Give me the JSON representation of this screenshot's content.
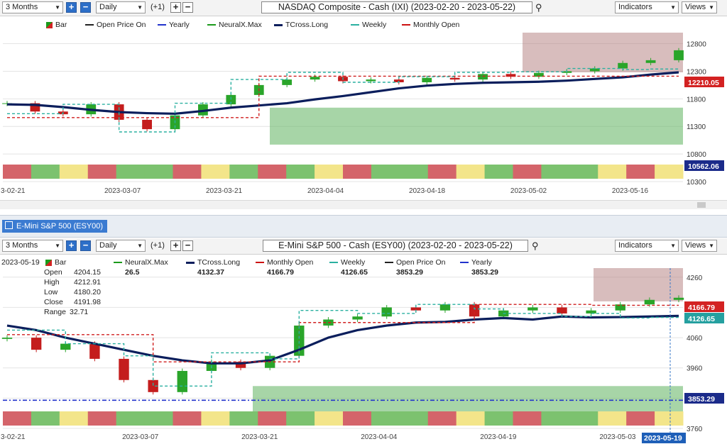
{
  "toolbar1": {
    "period": "3 Months",
    "interval": "Daily",
    "offset": "(+1)",
    "title": "NASDAQ Composite - Cash (IXI) (2023-02-20 - 2023-05-22)",
    "indicators": "Indicators",
    "views": "Views"
  },
  "toolbar2": {
    "period": "3 Months",
    "interval": "Daily",
    "offset": "(+1)",
    "title": "E-Mini S&P 500 - Cash (ESY00) (2023-02-20 - 2023-05-22)",
    "indicators": "Indicators",
    "views": "Views"
  },
  "tab_label": "E-Mini S&P 500 (ESY00)",
  "legend1": [
    {
      "label": "Bar",
      "color": "#1a9a1a"
    },
    {
      "label": "Open Price On",
      "color": "#222222"
    },
    {
      "label": "Yearly",
      "color": "#2233cc"
    },
    {
      "label": "NeuralX.Max",
      "color": "#1a9a1a"
    },
    {
      "label": "TCross.Long",
      "color": "#0b1e5c"
    },
    {
      "label": "Weekly",
      "color": "#2ab0a0"
    },
    {
      "label": "Monthly Open",
      "color": "#cc1111"
    }
  ],
  "legend2": {
    "date": "2023-05-19",
    "items": [
      {
        "label": "Bar",
        "color": "#1a9a1a"
      },
      {
        "label": "NeuralX.Max",
        "color": "#1a9a1a",
        "value": "26.5"
      },
      {
        "label": "TCross.Long",
        "color": "#0b1e5c",
        "value": "4132.37"
      },
      {
        "label": "Monthly Open",
        "color": "#cc1111",
        "value": "4166.79"
      },
      {
        "label": "Weekly",
        "color": "#2ab0a0",
        "value": "4126.65"
      },
      {
        "label": "Open Price On",
        "color": "#222222",
        "value": "3853.29"
      },
      {
        "label": "Yearly",
        "color": "#2233cc",
        "value": "3853.29"
      }
    ],
    "ohlc": [
      {
        "k": "Open",
        "v": "4204.15"
      },
      {
        "k": "High",
        "v": "4212.91"
      },
      {
        "k": "Low",
        "v": "4180.20"
      },
      {
        "k": "Close",
        "v": "4191.98"
      },
      {
        "k": "Range",
        "v": "32.71"
      }
    ]
  },
  "chart_data": [
    {
      "type": "line",
      "title": "NASDAQ Composite - Cash (IXI) (2023-02-20 - 2023-05-22)",
      "ylim": [
        10300,
        13000
      ],
      "y_ticks": [
        12800,
        12300,
        11800,
        11300,
        10800,
        10300
      ],
      "x_ticks": [
        "3-02-21",
        "2023-03-07",
        "2023-03-21",
        "2023-04-04",
        "2023-04-18",
        "2023-05-02",
        "2023-05-16"
      ],
      "price_labels": [
        {
          "value": "12210.05",
          "color": "#d32222"
        },
        {
          "value": "10562.06",
          "color": "#1b2b8a"
        }
      ],
      "series": [
        {
          "name": "TCross.Long",
          "values": [
            11700,
            11690,
            11650,
            11600,
            11560,
            11540,
            11530,
            11580,
            11640,
            11680,
            11720,
            11790,
            11850,
            11920,
            11990,
            12040,
            12070,
            12090,
            12100,
            12110,
            12130,
            12160,
            12190,
            12240,
            12280
          ]
        },
        {
          "name": "Monthly Open",
          "values": [
            11460,
            11460,
            11460,
            11460,
            11460,
            11460,
            11460,
            11460,
            11460,
            12210,
            12210,
            12210,
            12210,
            12210,
            12210,
            12210,
            12210,
            12210,
            12210,
            12210,
            12210,
            12210,
            12210,
            12210,
            12210
          ]
        },
        {
          "name": "Weekly",
          "values": [
            11530,
            11530,
            11700,
            11700,
            11200,
            11200,
            11720,
            11720,
            12150,
            12150,
            12280,
            12280,
            12100,
            12100,
            12200,
            12200,
            12280,
            12280,
            12290,
            12290,
            12350,
            12350,
            12330,
            12340,
            12360
          ]
        },
        {
          "name": "Close",
          "values": [
            11720,
            11570,
            11520,
            11700,
            11420,
            11250,
            11500,
            11700,
            11870,
            12050,
            12150,
            12200,
            12120,
            12150,
            12100,
            12180,
            12150,
            12250,
            12200,
            12270,
            12300,
            12350,
            12450,
            12500,
            12680
          ]
        }
      ]
    },
    {
      "type": "line",
      "title": "E-Mini S&P 500 - Cash (ESY00) (2023-02-20 - 2023-05-22)",
      "ylim": [
        3760,
        4290
      ],
      "y_ticks": [
        4260,
        4160,
        4060,
        3960,
        3860,
        3760
      ],
      "x_ticks": [
        "3-02-21",
        "2023-03-07",
        "2023-03-21",
        "2023-04-04",
        "2023-04-19",
        "2023-05-03"
      ],
      "price_labels": [
        {
          "value": "4166.79",
          "color": "#d32222"
        },
        {
          "value": "4126.65",
          "color": "#25a0a0"
        },
        {
          "value": "3853.29",
          "color": "#1b2b8a"
        }
      ],
      "cursor_date": "2023-05-19",
      "series": [
        {
          "name": "TCross.Long",
          "values": [
            4100,
            4085,
            4060,
            4040,
            4020,
            4000,
            3985,
            3975,
            3975,
            3985,
            4020,
            4060,
            4085,
            4100,
            4110,
            4112,
            4120,
            4125,
            4120,
            4130,
            4127,
            4128,
            4130,
            4132
          ]
        },
        {
          "name": "Monthly Open",
          "values": [
            4070,
            4070,
            4070,
            4070,
            4070,
            3980,
            3980,
            3980,
            3980,
            3980,
            4110,
            4110,
            4110,
            4110,
            4110,
            4110,
            4170,
            4170,
            4170,
            4170,
            4167,
            4167,
            4167,
            4167
          ]
        },
        {
          "name": "Weekly",
          "values": [
            4085,
            4085,
            4040,
            4040,
            4000,
            3900,
            3900,
            4010,
            4010,
            3990,
            4150,
            4150,
            4140,
            4140,
            4170,
            4170,
            4155,
            4140,
            4140,
            4130,
            4140,
            4125,
            4127,
            4127
          ]
        },
        {
          "name": "Close",
          "values": [
            4060,
            4020,
            4040,
            3990,
            3920,
            3880,
            3950,
            3980,
            3960,
            4000,
            4100,
            4120,
            4130,
            4160,
            4150,
            4170,
            4130,
            4150,
            4160,
            4140,
            4150,
            4170,
            4185,
            4192
          ]
        }
      ]
    }
  ]
}
